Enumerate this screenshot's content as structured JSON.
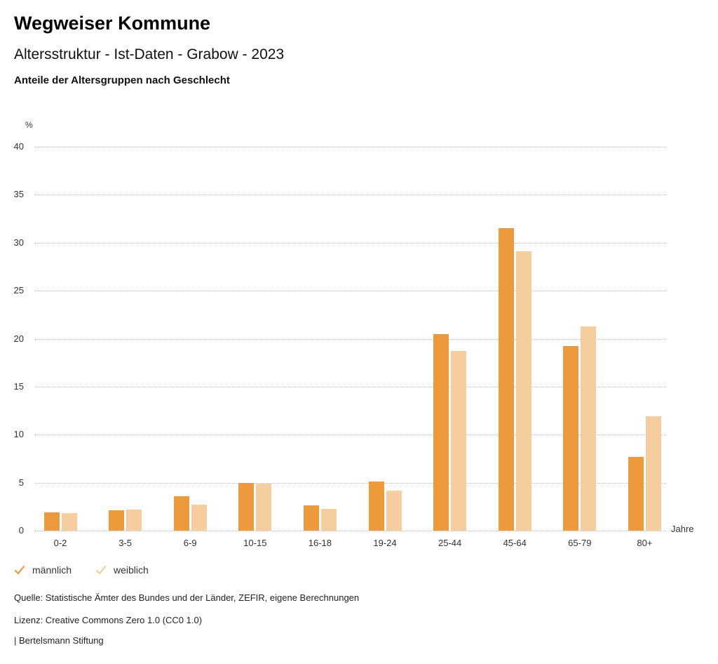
{
  "header": {
    "title": "Wegweiser Kommune",
    "subtitle": "Altersstruktur - Ist-Daten - Grabow - 2023",
    "chart_heading": "Anteile der Altersgruppen nach Geschlecht"
  },
  "chart_data": {
    "type": "bar",
    "title": "Anteile der Altersgruppen nach Geschlecht",
    "categories": [
      "0-2",
      "3-5",
      "6-9",
      "10-15",
      "16-18",
      "19-24",
      "25-44",
      "45-64",
      "65-79",
      "80+"
    ],
    "series": [
      {
        "name": "männlich",
        "color": "#EC9A3C",
        "values": [
          1.9,
          2.1,
          3.6,
          5.0,
          2.6,
          5.1,
          20.5,
          31.5,
          19.2,
          7.7
        ]
      },
      {
        "name": "weiblich",
        "color": "#F5CD9E",
        "values": [
          1.8,
          2.2,
          2.7,
          4.9,
          2.3,
          4.2,
          18.7,
          29.1,
          21.3,
          11.9
        ]
      }
    ],
    "ylabel": "%",
    "xlabel": "Jahre",
    "ylim": [
      0,
      40
    ],
    "ytick_step": 5,
    "grid": "horizontal-dotted",
    "gridline_color": "#bdbdbd",
    "legend_position": "bottom-left"
  },
  "legend": {
    "check_icon": "checkmark"
  },
  "footer": {
    "source": "Quelle: Statistische Ämter des Bundes und der Länder, ZEFIR, eigene Berechnungen",
    "license": "Lizenz: Creative Commons Zero 1.0 (CC0 1.0)",
    "brand": "| Bertelsmann Stiftung"
  }
}
